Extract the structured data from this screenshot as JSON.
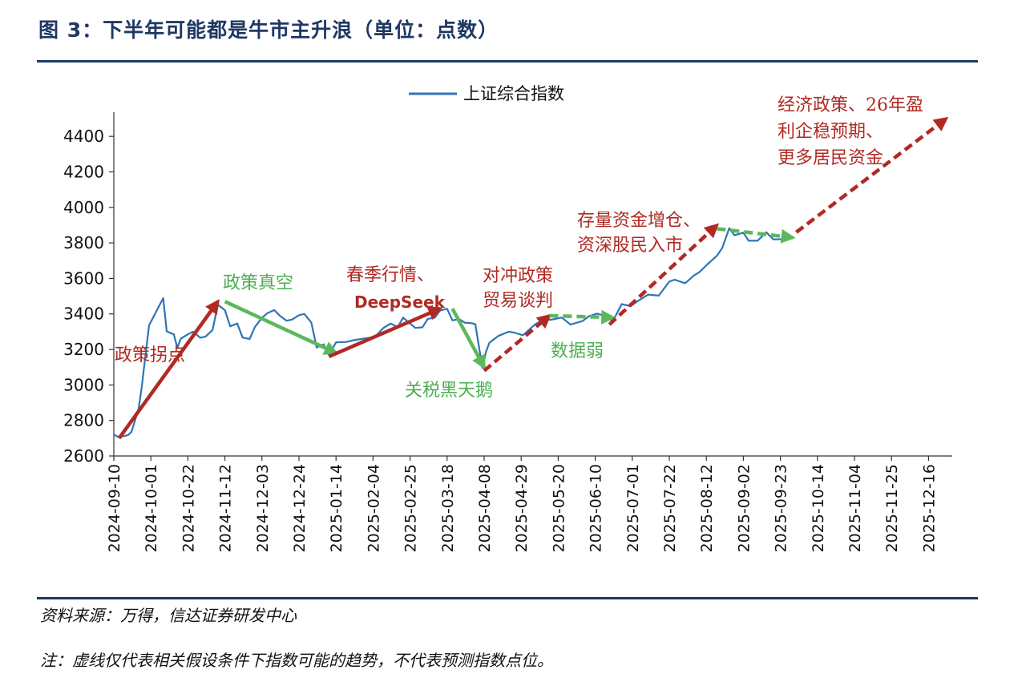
{
  "figure": {
    "title": "图 3：下半年可能都是牛市主升浪（单位：点数）",
    "source": "资料来源：万得，信达证券研发中心",
    "note": "注：虚线仅代表相关假设条件下指数可能的趋势，不代表预测指数点位。"
  },
  "colors": {
    "title": "#1f3864",
    "line": "#2e75b6",
    "red": "#b02a24",
    "green": "#5cb85c",
    "annotation_red": "#b02a24",
    "annotation_green": "#4caf50"
  },
  "chart_data": {
    "type": "line",
    "xaxis_type": "date",
    "xlim": [
      "2024-09-10",
      "2025-12-30"
    ],
    "ylim": [
      2600,
      4500
    ],
    "yticks": [
      2600,
      2800,
      3000,
      3200,
      3400,
      3600,
      3800,
      4000,
      4200,
      4400
    ],
    "xticks": [
      "2024-09-10",
      "2024-10-01",
      "2024-10-22",
      "2024-11-12",
      "2024-12-03",
      "2024-12-24",
      "2025-01-14",
      "2025-02-04",
      "2025-02-25",
      "2025-03-18",
      "2025-04-08",
      "2025-04-29",
      "2025-05-20",
      "2025-06-10",
      "2025-07-01",
      "2025-07-22",
      "2025-08-12",
      "2025-09-02",
      "2025-09-23",
      "2025-10-14",
      "2025-11-04",
      "2025-11-25",
      "2025-12-16"
    ],
    "legend": {
      "position": "top-center",
      "entries": [
        "上证综合指数"
      ]
    },
    "series": [
      {
        "name": "上证综合指数",
        "x": [
          "2024-09-10",
          "2024-09-13",
          "2024-09-18",
          "2024-09-20",
          "2024-09-24",
          "2024-09-26",
          "2024-09-27",
          "2024-09-30",
          "2024-10-08",
          "2024-10-10",
          "2024-10-14",
          "2024-10-16",
          "2024-10-18",
          "2024-10-22",
          "2024-10-25",
          "2024-10-29",
          "2024-11-01",
          "2024-11-05",
          "2024-11-08",
          "2024-11-12",
          "2024-11-15",
          "2024-11-19",
          "2024-11-22",
          "2024-11-26",
          "2024-11-29",
          "2024-12-03",
          "2024-12-06",
          "2024-12-10",
          "2024-12-13",
          "2024-12-17",
          "2024-12-20",
          "2024-12-24",
          "2024-12-27",
          "2024-12-31",
          "2025-01-03",
          "2025-01-07",
          "2025-01-10",
          "2025-01-14",
          "2025-01-20",
          "2025-01-24",
          "2025-02-05",
          "2025-02-10",
          "2025-02-14",
          "2025-02-18",
          "2025-02-21",
          "2025-02-25",
          "2025-02-28",
          "2025-03-04",
          "2025-03-07",
          "2025-03-11",
          "2025-03-14",
          "2025-03-18",
          "2025-03-21",
          "2025-03-25",
          "2025-03-28",
          "2025-04-01",
          "2025-04-03",
          "2025-04-07",
          "2025-04-09",
          "2025-04-11",
          "2025-04-16",
          "2025-04-22",
          "2025-04-25",
          "2025-04-30",
          "2025-05-07",
          "2025-05-12",
          "2025-05-16",
          "2025-05-22",
          "2025-05-27",
          "2025-06-03",
          "2025-06-06",
          "2025-06-11",
          "2025-06-16",
          "2025-06-20",
          "2025-06-25",
          "2025-06-30",
          "2025-07-04",
          "2025-07-10",
          "2025-07-16",
          "2025-07-22",
          "2025-07-25",
          "2025-07-31",
          "2025-08-05",
          "2025-08-08",
          "2025-08-13",
          "2025-08-18",
          "2025-08-21",
          "2025-08-25",
          "2025-08-28",
          "2025-09-02",
          "2025-09-05",
          "2025-09-10",
          "2025-09-15",
          "2025-09-19",
          "2025-09-23",
          "2025-09-26"
        ],
        "values": [
          2720,
          2705,
          2718,
          2736,
          2863,
          3000,
          3088,
          3336,
          3489,
          3302,
          3285,
          3210,
          3261,
          3285,
          3300,
          3266,
          3272,
          3310,
          3452,
          3421,
          3330,
          3346,
          3267,
          3259,
          3326,
          3378,
          3404,
          3422,
          3391,
          3362,
          3368,
          3393,
          3400,
          3352,
          3211,
          3229,
          3168,
          3240,
          3242,
          3252,
          3270,
          3322,
          3346,
          3325,
          3379,
          3346,
          3321,
          3325,
          3372,
          3379,
          3419,
          3429,
          3364,
          3370,
          3351,
          3348,
          3342,
          3096,
          3186,
          3238,
          3276,
          3300,
          3295,
          3280,
          3342,
          3369,
          3367,
          3380,
          3340,
          3361,
          3385,
          3402,
          3388,
          3359,
          3455,
          3444,
          3472,
          3509,
          3503,
          3582,
          3593,
          3573,
          3617,
          3635,
          3683,
          3728,
          3771,
          3883,
          3843,
          3858,
          3812,
          3812,
          3860,
          3820,
          3821,
          3828
        ]
      }
    ],
    "trend_arrows": [
      {
        "x0": "2024-09-13",
        "y0": 2700,
        "x1": "2024-11-08",
        "y1": 3470,
        "color": "red",
        "style": "solid"
      },
      {
        "x0": "2024-11-12",
        "y0": 3470,
        "x1": "2025-01-14",
        "y1": 3180,
        "color": "green",
        "style": "solid"
      },
      {
        "x0": "2025-01-10",
        "y0": 3160,
        "x1": "2025-03-14",
        "y1": 3430,
        "color": "red",
        "style": "solid"
      },
      {
        "x0": "2025-03-21",
        "y0": 3430,
        "x1": "2025-04-08",
        "y1": 3100,
        "color": "green",
        "style": "solid"
      },
      {
        "x0": "2025-04-08",
        "y0": 3080,
        "x1": "2025-05-15",
        "y1": 3390,
        "color": "red",
        "style": "dashed"
      },
      {
        "x0": "2025-05-15",
        "y0": 3390,
        "x1": "2025-06-20",
        "y1": 3380,
        "color": "green",
        "style": "dashed"
      },
      {
        "x0": "2025-06-18",
        "y0": 3340,
        "x1": "2025-08-18",
        "y1": 3900,
        "color": "red",
        "style": "dashed"
      },
      {
        "x0": "2025-08-18",
        "y0": 3880,
        "x1": "2025-09-30",
        "y1": 3830,
        "color": "green",
        "style": "dashed"
      },
      {
        "x0": "2025-10-02",
        "y0": 3860,
        "x1": "2025-12-26",
        "y1": 4500,
        "color": "red",
        "style": "dashed"
      }
    ],
    "annotations": [
      {
        "text": "政策拐点",
        "color": "red",
        "lines": [
          "政策拐点"
        ]
      },
      {
        "text": "政策真空",
        "color": "green",
        "lines": [
          "政策真空"
        ]
      },
      {
        "text": "春季行情、DeepSeek",
        "color": "red",
        "lines": [
          "春季行情、",
          "DeepSeek"
        ]
      },
      {
        "text": "关税黑天鹅",
        "color": "green",
        "lines": [
          "关税黑天鹅"
        ]
      },
      {
        "text": "对冲政策贸易谈判",
        "color": "red",
        "lines": [
          "对冲政策",
          "贸易谈判"
        ]
      },
      {
        "text": "数据弱",
        "color": "green",
        "lines": [
          "数据弱"
        ]
      },
      {
        "text": "存量资金增仓、资深股民入市",
        "color": "red",
        "lines": [
          "存量资金增仓、",
          "资深股民入市"
        ]
      },
      {
        "text": "经济政策、26年盈利企稳预期、更多居民资金",
        "color": "red",
        "lines": [
          "经济政策、26年盈",
          "利企稳预期、",
          "更多居民资金"
        ]
      }
    ]
  }
}
